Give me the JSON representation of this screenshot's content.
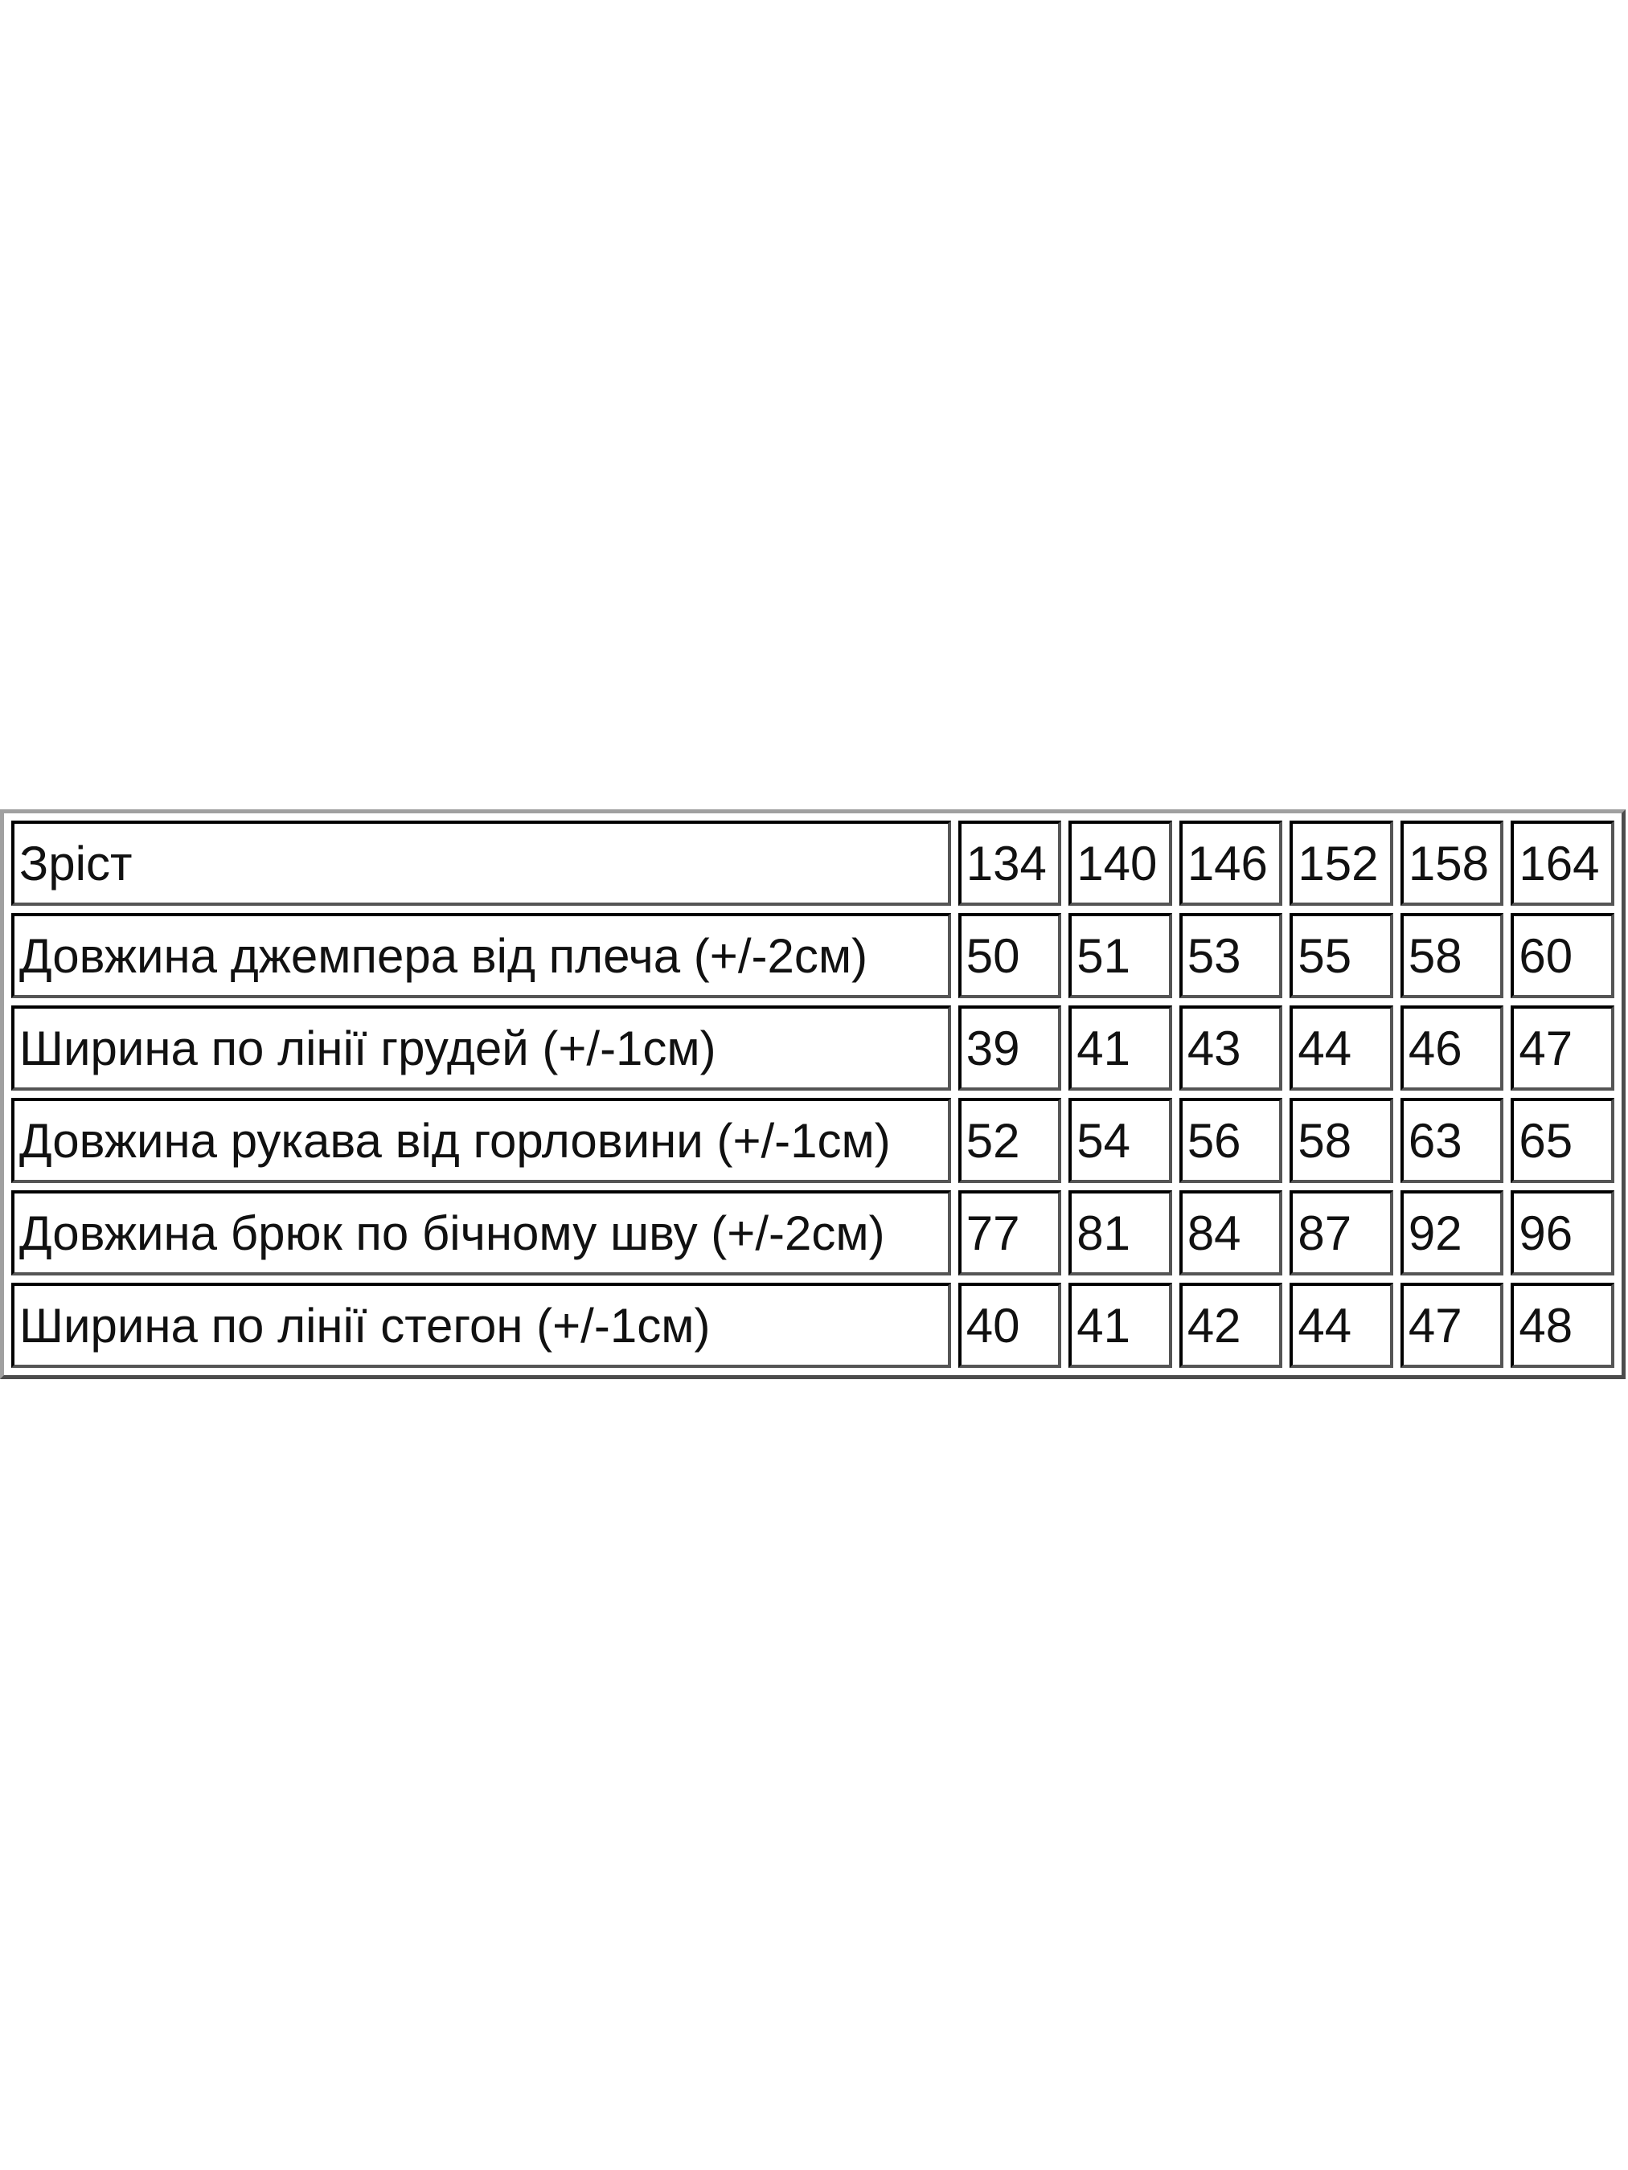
{
  "table": {
    "header": {
      "label": "Зріст",
      "values": [
        "134",
        "140",
        "146",
        "152",
        "158",
        "164"
      ]
    },
    "rows": [
      {
        "label": "Довжина джемпера від плеча (+/-2см)",
        "values": [
          "50",
          "51",
          "53",
          "55",
          "58",
          "60"
        ]
      },
      {
        "label": "Ширина по лінії грудей (+/-1см)",
        "values": [
          "39",
          "41",
          "43",
          "44",
          "46",
          "47"
        ]
      },
      {
        "label": "Довжина рукава від горловини (+/-1см)",
        "values": [
          "52",
          "54",
          "56",
          "58",
          "63",
          "65"
        ]
      },
      {
        "label": "Довжина брюк по бічному шву (+/-2см)",
        "values": [
          "77",
          "81",
          "84",
          "87",
          "92",
          "96"
        ]
      },
      {
        "label": "Ширина по лінії стегон (+/-1см)",
        "values": [
          "40",
          "41",
          "42",
          "44",
          "47",
          "48"
        ]
      }
    ]
  }
}
